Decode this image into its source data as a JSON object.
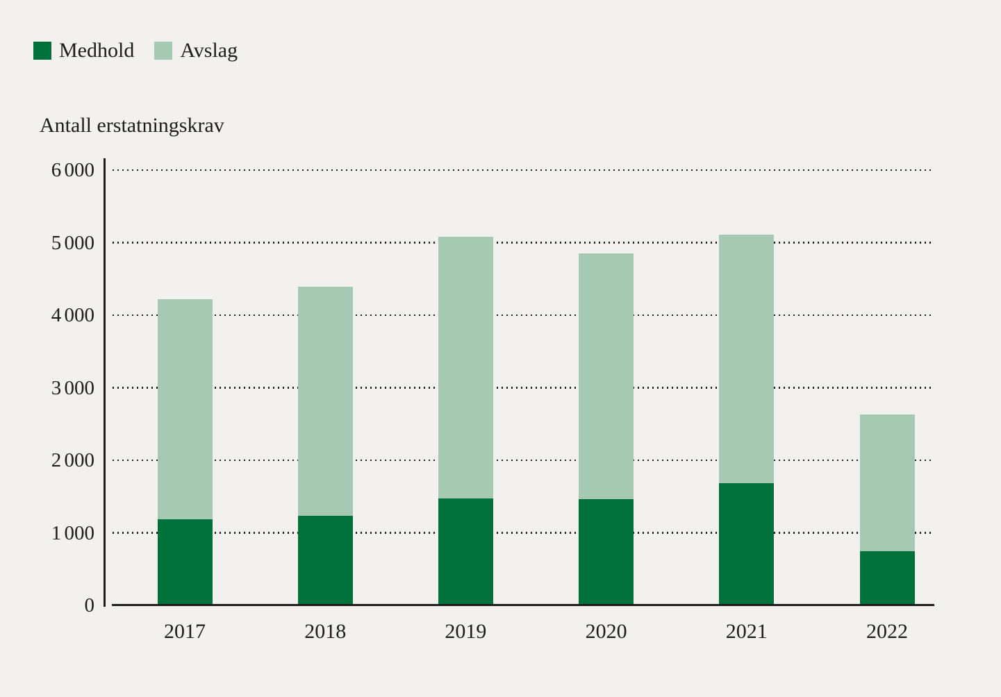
{
  "colors": {
    "background": "#F2F1EE",
    "medhold": "#00713B",
    "avslag": "#A6C9B4",
    "axis": "#1D1D1C",
    "grid_dots": "#1D1D1C",
    "text": "#1C1C1B"
  },
  "legend": {
    "items": [
      {
        "label": "Medhold",
        "color": "#00713B"
      },
      {
        "label": "Avslag",
        "color": "#A6C9B4"
      }
    ]
  },
  "axis_title": "Antall erstatningskrav",
  "chart_data": {
    "type": "bar",
    "stacked": true,
    "title": "",
    "ylabel": "Antall erstatningskrav",
    "xlabel": "",
    "ylim": [
      0,
      6000
    ],
    "grid": "horizontal dotted gridlines at every 1000",
    "legend_position": "top-left",
    "categories": [
      "2017",
      "2018",
      "2019",
      "2020",
      "2021",
      "2022"
    ],
    "series": [
      {
        "name": "Medhold",
        "color": "#00713B",
        "values": [
          1190,
          1230,
          1475,
          1465,
          1685,
          745
        ]
      },
      {
        "name": "Avslag",
        "color": "#A6C9B4",
        "values": [
          3030,
          3160,
          3605,
          3385,
          3425,
          1885
        ]
      }
    ],
    "stack_totals": [
      4220,
      4390,
      5080,
      4850,
      5110,
      2630
    ],
    "yticks": [
      {
        "value": 0,
        "label": "0"
      },
      {
        "value": 1000,
        "label": "1 000"
      },
      {
        "value": 2000,
        "label": "2 000"
      },
      {
        "value": 3000,
        "label": "3 000"
      },
      {
        "value": 4000,
        "label": "4 000"
      },
      {
        "value": 5000,
        "label": "5 000"
      },
      {
        "value": 6000,
        "label": "6 000"
      }
    ]
  }
}
